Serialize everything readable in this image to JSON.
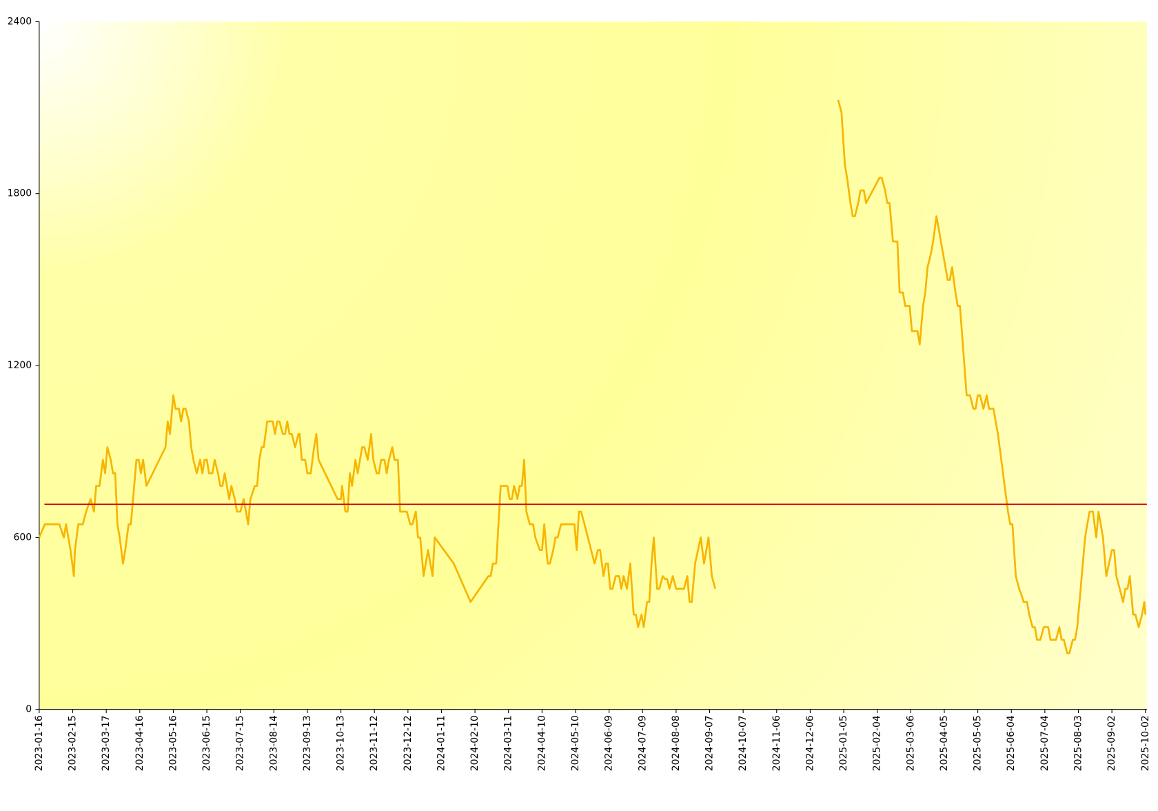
{
  "chart_data": {
    "type": "line",
    "color": "#f7b500",
    "line_width": 2.5,
    "reference_line": {
      "value": 716,
      "color": "#d40000"
    },
    "xlim": [
      "2023-01-16",
      "2025-10-02"
    ],
    "xticks": [
      "2023-01-16",
      "2023-02-15",
      "2023-03-17",
      "2023-04-16",
      "2023-05-16",
      "2023-06-15",
      "2023-07-15",
      "2023-08-14",
      "2023-09-13",
      "2023-10-13",
      "2023-11-12",
      "2023-12-12",
      "2024-01-11",
      "2024-02-10",
      "2024-03-11",
      "2024-04-10",
      "2024-05-10",
      "2024-06-09",
      "2024-07-09",
      "2024-08-08",
      "2024-09-07",
      "2024-10-07",
      "2024-11-06",
      "2024-12-06",
      "2025-01-05",
      "2025-02-04",
      "2025-03-06",
      "2025-04-05",
      "2025-05-05",
      "2025-06-04",
      "2025-07-04",
      "2025-08-03",
      "2025-09-02",
      "2025-10-02"
    ],
    "ylim": [
      0,
      2400
    ],
    "yticks": [
      0,
      600,
      1200,
      1800,
      2400
    ],
    "grid": false,
    "x": [
      "2023-01-16",
      "2023-01-21",
      "2023-02-03",
      "2023-02-07",
      "2023-02-09",
      "2023-02-13",
      "2023-02-16",
      "2023-02-17",
      "2023-02-20",
      "2023-02-24",
      "2023-02-27",
      "2023-03-03",
      "2023-03-06",
      "2023-03-08",
      "2023-03-11",
      "2023-03-14",
      "2023-03-16",
      "2023-03-18",
      "2023-03-21",
      "2023-03-23",
      "2023-03-25",
      "2023-03-27",
      "2023-03-29",
      "2023-04-01",
      "2023-04-03",
      "2023-04-06",
      "2023-04-08",
      "2023-04-11",
      "2023-04-13",
      "2023-04-15",
      "2023-04-17",
      "2023-04-19",
      "2023-04-22",
      "2023-05-09",
      "2023-05-11",
      "2023-05-13",
      "2023-05-16",
      "2023-05-18",
      "2023-05-21",
      "2023-05-23",
      "2023-05-25",
      "2023-05-27",
      "2023-05-30",
      "2023-06-01",
      "2023-06-03",
      "2023-06-06",
      "2023-06-09",
      "2023-06-11",
      "2023-06-13",
      "2023-06-15",
      "2023-06-17",
      "2023-06-20",
      "2023-06-22",
      "2023-06-25",
      "2023-06-27",
      "2023-06-29",
      "2023-07-01",
      "2023-07-05",
      "2023-07-07",
      "2023-07-10",
      "2023-07-12",
      "2023-07-15",
      "2023-07-18",
      "2023-07-22",
      "2023-07-24",
      "2023-07-28",
      "2023-07-30",
      "2023-08-01",
      "2023-08-03",
      "2023-08-05",
      "2023-08-08",
      "2023-08-13",
      "2023-08-15",
      "2023-08-17",
      "2023-08-19",
      "2023-08-22",
      "2023-08-24",
      "2023-08-26",
      "2023-08-28",
      "2023-08-30",
      "2023-09-02",
      "2023-09-05",
      "2023-09-06",
      "2023-09-08",
      "2023-09-11",
      "2023-09-13",
      "2023-09-16",
      "2023-09-19",
      "2023-09-21",
      "2023-09-23",
      "2023-10-10",
      "2023-10-13",
      "2023-10-14",
      "2023-10-17",
      "2023-10-19",
      "2023-10-21",
      "2023-10-23",
      "2023-10-26",
      "2023-10-28",
      "2023-11-01",
      "2023-11-03",
      "2023-11-06",
      "2023-11-09",
      "2023-11-11",
      "2023-11-14",
      "2023-11-16",
      "2023-11-18",
      "2023-11-21",
      "2023-11-23",
      "2023-11-25",
      "2023-11-28",
      "2023-11-30",
      "2023-12-03",
      "2023-12-05",
      "2023-12-11",
      "2023-12-14",
      "2023-12-16",
      "2023-12-19",
      "2023-12-21",
      "2023-12-23",
      "2023-12-26",
      "2023-12-30",
      "2024-01-03",
      "2024-01-05",
      "2024-01-22",
      "2024-02-06",
      "2024-02-22",
      "2024-02-24",
      "2024-02-26",
      "2024-02-29",
      "2024-03-02",
      "2024-03-04",
      "2024-03-10",
      "2024-03-12",
      "2024-03-14",
      "2024-03-16",
      "2024-03-19",
      "2024-03-21",
      "2024-03-23",
      "2024-03-25",
      "2024-03-27",
      "2024-03-30",
      "2024-04-02",
      "2024-04-04",
      "2024-04-08",
      "2024-04-10",
      "2024-04-12",
      "2024-04-15",
      "2024-04-17",
      "2024-04-20",
      "2024-04-22",
      "2024-04-24",
      "2024-04-27",
      "2024-05-09",
      "2024-05-11",
      "2024-05-13",
      "2024-05-15",
      "2024-05-18",
      "2024-05-27",
      "2024-05-30",
      "2024-06-01",
      "2024-06-04",
      "2024-06-06",
      "2024-06-08",
      "2024-06-10",
      "2024-06-12",
      "2024-06-15",
      "2024-06-18",
      "2024-06-20",
      "2024-06-22",
      "2024-06-25",
      "2024-06-28",
      "2024-07-01",
      "2024-07-03",
      "2024-07-05",
      "2024-07-08",
      "2024-07-10",
      "2024-07-13",
      "2024-07-15",
      "2024-07-17",
      "2024-07-19",
      "2024-07-22",
      "2024-07-24",
      "2024-07-27",
      "2024-07-29",
      "2024-07-31",
      "2024-08-02",
      "2024-08-05",
      "2024-08-08",
      "2024-08-15",
      "2024-08-18",
      "2024-08-20",
      "2024-08-22",
      "2024-08-25",
      "2024-08-30",
      "2024-09-02",
      "2024-09-06",
      "2024-09-09",
      "2024-09-12",
      "2024-11-01",
      "2024-12-31",
      "2025-01-03",
      "2025-01-06",
      "2025-01-08",
      "2025-01-11",
      "2025-01-13",
      "2025-01-15",
      "2025-01-18",
      "2025-01-20",
      "2025-01-23",
      "2025-01-25",
      "2025-02-06",
      "2025-02-08",
      "2025-02-11",
      "2025-02-13",
      "2025-02-15",
      "2025-02-18",
      "2025-02-22",
      "2025-02-24",
      "2025-02-27",
      "2025-03-01",
      "2025-03-05",
      "2025-03-07",
      "2025-03-12",
      "2025-03-14",
      "2025-03-17",
      "2025-03-19",
      "2025-03-21",
      "2025-03-24",
      "2025-03-26",
      "2025-03-29",
      "2025-04-08",
      "2025-04-10",
      "2025-04-12",
      "2025-04-15",
      "2025-04-17",
      "2025-04-19",
      "2025-04-25",
      "2025-04-28",
      "2025-05-01",
      "2025-05-03",
      "2025-05-05",
      "2025-05-07",
      "2025-05-10",
      "2025-05-13",
      "2025-05-15",
      "2025-05-19",
      "2025-05-23",
      "2025-05-26",
      "2025-05-29",
      "2025-06-01",
      "2025-06-03",
      "2025-06-05",
      "2025-06-08",
      "2025-06-11",
      "2025-06-13",
      "2025-06-15",
      "2025-06-18",
      "2025-06-20",
      "2025-06-23",
      "2025-06-25",
      "2025-06-27",
      "2025-06-30",
      "2025-07-03",
      "2025-07-07",
      "2025-07-09",
      "2025-07-14",
      "2025-07-17",
      "2025-07-19",
      "2025-07-21",
      "2025-07-24",
      "2025-07-26",
      "2025-07-29",
      "2025-07-31",
      "2025-08-02",
      "2025-08-04",
      "2025-08-07",
      "2025-08-09",
      "2025-08-11",
      "2025-08-13",
      "2025-08-16",
      "2025-08-19",
      "2025-08-21",
      "2025-08-23",
      "2025-08-25",
      "2025-08-28",
      "2025-09-02",
      "2025-09-04",
      "2025-09-06",
      "2025-09-09",
      "2025-09-12",
      "2025-09-14",
      "2025-09-16",
      "2025-09-18",
      "2025-09-21",
      "2025-09-23",
      "2025-09-26",
      "2025-09-29",
      "2025-10-01",
      "2025-10-02"
    ],
    "values": [
      600,
      646,
      646,
      600,
      646,
      556,
      465,
      556,
      646,
      646,
      690,
      734,
      690,
      780,
      780,
      871,
      824,
      915,
      871,
      824,
      824,
      646,
      600,
      509,
      556,
      646,
      646,
      780,
      871,
      871,
      824,
      871,
      780,
      915,
      1005,
      961,
      1096,
      1049,
      1049,
      1005,
      1049,
      1049,
      1005,
      915,
      871,
      824,
      871,
      824,
      871,
      871,
      824,
      824,
      871,
      824,
      780,
      780,
      824,
      734,
      780,
      734,
      690,
      690,
      734,
      646,
      734,
      780,
      780,
      871,
      915,
      915,
      1005,
      1005,
      961,
      1005,
      1005,
      961,
      961,
      1005,
      961,
      961,
      915,
      961,
      961,
      871,
      871,
      824,
      824,
      915,
      961,
      871,
      734,
      734,
      780,
      690,
      690,
      824,
      780,
      871,
      824,
      915,
      915,
      871,
      961,
      871,
      824,
      824,
      871,
      871,
      824,
      871,
      915,
      871,
      871,
      690,
      690,
      646,
      646,
      690,
      600,
      600,
      465,
      556,
      465,
      600,
      509,
      375,
      465,
      465,
      509,
      509,
      646,
      780,
      780,
      734,
      734,
      780,
      734,
      780,
      780,
      871,
      690,
      646,
      646,
      600,
      556,
      556,
      646,
      509,
      509,
      556,
      600,
      600,
      646,
      646,
      556,
      690,
      690,
      646,
      509,
      556,
      556,
      465,
      509,
      509,
      421,
      421,
      465,
      465,
      421,
      465,
      421,
      509,
      331,
      331,
      287,
      331,
      287,
      375,
      375,
      509,
      600,
      421,
      421,
      465,
      455,
      455,
      421,
      465,
      421,
      421,
      465,
      375,
      375,
      509,
      600,
      509,
      600,
      465,
      421,
      null,
      2127,
      2083,
      1902,
      1855,
      1767,
      1721,
      1721,
      1767,
      1811,
      1811,
      1767,
      1855,
      1855,
      1811,
      1767,
      1767,
      1633,
      1633,
      1455,
      1455,
      1408,
      1408,
      1320,
      1320,
      1274,
      1408,
      1455,
      1543,
      1589,
      1633,
      1721,
      1499,
      1499,
      1543,
      1455,
      1408,
      1408,
      1096,
      1096,
      1049,
      1049,
      1096,
      1096,
      1049,
      1096,
      1049,
      1049,
      961,
      871,
      780,
      690,
      646,
      646,
      465,
      421,
      400,
      375,
      375,
      331,
      287,
      287,
      243,
      243,
      287,
      287,
      243,
      243,
      287,
      243,
      243,
      196,
      196,
      243,
      243,
      287,
      375,
      509,
      600,
      646,
      690,
      690,
      600,
      690,
      646,
      600,
      465,
      556,
      556,
      465,
      421,
      375,
      421,
      421,
      465,
      331,
      331,
      287,
      331,
      375,
      331
    ]
  }
}
